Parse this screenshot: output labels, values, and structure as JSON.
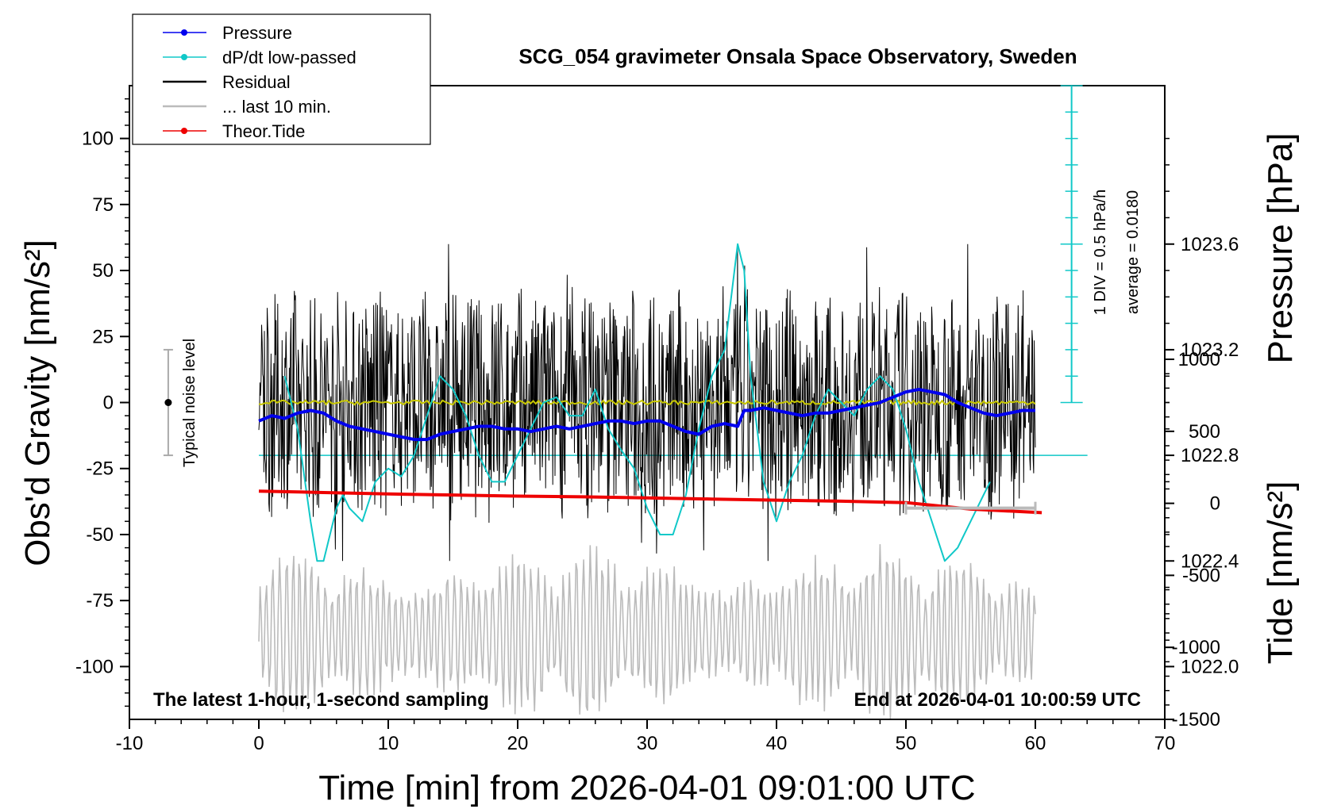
{
  "chart_data": {
    "type": "line",
    "title": "SCG_054 gravimeter Onsala Space Observatory, Sweden",
    "xlabel": "Time [min] from 2026-04-01 09:01:00 UTC",
    "ylabel_left": "Obs'd Gravity [nm/s²]",
    "ylabel_right_top": "Pressure [hPa]",
    "ylabel_right_bottom": "Tide [nm/s²]",
    "xlim": [
      -10,
      70
    ],
    "ylim_gravity": [
      -120,
      120
    ],
    "ylim_pressure": [
      1021.8,
      1024.2
    ],
    "ylim_tide": [
      -1500,
      2900
    ],
    "x_ticks": [
      "-10",
      "0",
      "10",
      "20",
      "30",
      "40",
      "50",
      "60",
      "70"
    ],
    "gravity_ticks": [
      "100",
      "75",
      "50",
      "25",
      "0",
      "-25",
      "-50",
      "-75",
      "-100"
    ],
    "pressure_ticks": [
      "1023.6",
      "1023.2",
      "1022.8",
      "1022.4",
      "1022.0"
    ],
    "tide_ticks": [
      "1000",
      "500",
      "0",
      "-500",
      "-1000",
      "-1500"
    ],
    "legend_position": "top-left",
    "legend": [
      {
        "label": "Pressure",
        "color": "#0000ee",
        "marker": true
      },
      {
        "label": "dP/dt low-passed",
        "color": "#10c8c8",
        "marker": true
      },
      {
        "label": "Residual",
        "color": "#000000",
        "marker": false
      },
      {
        "label": "... last 10 min.",
        "color": "#bbbbbb",
        "marker": false
      },
      {
        "label": "Theor.Tide",
        "color": "#ee0000",
        "marker": true
      }
    ],
    "annotations": {
      "bottom_left": "The latest 1-hour, 1-second sampling",
      "bottom_right": "End at 2026-04-01 10:00:59 UTC",
      "noise_label": "Typical noise level",
      "div_label": "1 DIV = 0.5 hPa/h",
      "average_label": "average = 0.0180"
    },
    "noise_level": {
      "x": -7,
      "center": 0,
      "range": [
        -20,
        20
      ]
    },
    "last_10_min_marker": {
      "x": [
        50,
        60
      ],
      "y": -40
    },
    "dpdt_reference_y_pressure": 1022.8,
    "series": [
      {
        "name": "Pressure",
        "axis": "pressure",
        "color": "#0000ee",
        "x": [
          0,
          1,
          2,
          3,
          4,
          5,
          6,
          7,
          8,
          9,
          10,
          11,
          12,
          13,
          14,
          15,
          16,
          17,
          18,
          19,
          20,
          21,
          22,
          23,
          24,
          25,
          26,
          27,
          28,
          29,
          30,
          31,
          32,
          33,
          34,
          35,
          36,
          37,
          37.5,
          38,
          39,
          40,
          41,
          42,
          43,
          44,
          45,
          46,
          47,
          48,
          49,
          50,
          51,
          52,
          53,
          54,
          55,
          56,
          57,
          58,
          59,
          60
        ],
        "y": [
          1022.93,
          1022.95,
          1022.94,
          1022.96,
          1022.97,
          1022.96,
          1022.93,
          1022.91,
          1022.9,
          1022.89,
          1022.88,
          1022.87,
          1022.86,
          1022.86,
          1022.88,
          1022.89,
          1022.9,
          1022.91,
          1022.91,
          1022.9,
          1022.9,
          1022.89,
          1022.9,
          1022.91,
          1022.9,
          1022.91,
          1022.92,
          1022.93,
          1022.93,
          1022.92,
          1022.93,
          1022.93,
          1022.91,
          1022.89,
          1022.88,
          1022.91,
          1022.92,
          1022.91,
          1022.97,
          1022.97,
          1022.98,
          1022.97,
          1022.96,
          1022.95,
          1022.96,
          1022.96,
          1022.97,
          1022.98,
          1022.99,
          1023.0,
          1023.02,
          1023.04,
          1023.05,
          1023.04,
          1023.03,
          1023.0,
          1022.98,
          1022.96,
          1022.95,
          1022.96,
          1022.97,
          1022.97
        ]
      },
      {
        "name": "dP/dt low-passed",
        "axis": "pressure",
        "color": "#10c8c8",
        "x": [
          2,
          3,
          4,
          4.5,
          5,
          6,
          6.5,
          7,
          8,
          9,
          10,
          11,
          12,
          13,
          14,
          15,
          16,
          17,
          18,
          19,
          20,
          21,
          22,
          23,
          24,
          25,
          26,
          27,
          28,
          29,
          30,
          31,
          32,
          33,
          34,
          35,
          36,
          36.5,
          37,
          37.5,
          38,
          39,
          40,
          41,
          42,
          43,
          44,
          45,
          46,
          47,
          48,
          49,
          50,
          51,
          52,
          53,
          54,
          55,
          56,
          56.5
        ],
        "y": [
          1023.1,
          1022.9,
          1022.55,
          1022.4,
          1022.4,
          1022.6,
          1022.65,
          1022.6,
          1022.55,
          1022.7,
          1022.75,
          1022.72,
          1022.8,
          1022.95,
          1023.1,
          1023.05,
          1022.95,
          1022.8,
          1022.7,
          1022.7,
          1022.8,
          1022.9,
          1023.0,
          1023.02,
          1022.95,
          1022.95,
          1023.05,
          1022.9,
          1022.82,
          1022.75,
          1022.6,
          1022.5,
          1022.5,
          1022.65,
          1022.9,
          1023.1,
          1023.2,
          1023.4,
          1023.6,
          1023.5,
          1023.1,
          1022.7,
          1022.55,
          1022.7,
          1022.8,
          1022.95,
          1023.05,
          1023.0,
          1022.95,
          1023.05,
          1023.1,
          1023.05,
          1022.9,
          1022.7,
          1022.55,
          1022.4,
          1022.45,
          1022.55,
          1022.65,
          1022.7
        ]
      },
      {
        "name": "Residual",
        "axis": "gravity",
        "color": "#000000",
        "y_range": [
          -45,
          45
        ],
        "x": [
          0,
          60
        ],
        "y": [
          0,
          0
        ]
      },
      {
        "name": "... last 10 min.",
        "axis": "gravity",
        "color": "#bbbbbb",
        "y_range": [
          -120,
          -55
        ],
        "x": [
          0,
          60
        ],
        "y": [
          -80,
          -80
        ]
      },
      {
        "name": "Theor.Tide",
        "axis": "tide",
        "color": "#ee0000",
        "x": [
          0,
          5,
          10,
          15,
          20,
          25,
          30,
          35,
          40,
          45,
          50,
          55,
          60.5
        ],
        "y": [
          85,
          75,
          65,
          58,
          50,
          45,
          38,
          30,
          22,
          15,
          5,
          -40,
          -65
        ]
      }
    ]
  }
}
